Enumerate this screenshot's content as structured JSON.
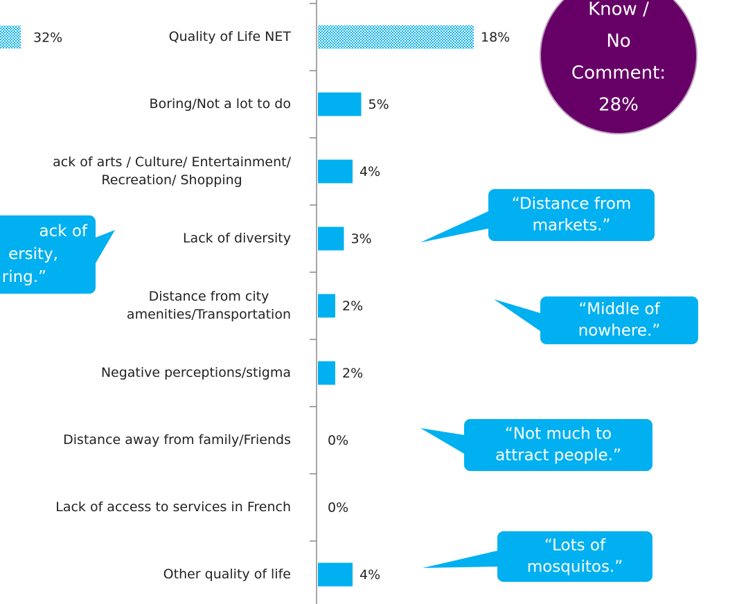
{
  "chart_data": [
    {
      "type": "bar",
      "orientation": "horizontal",
      "values": [
        32
      ],
      "value_labels": [
        "32%"
      ],
      "color": "#00b0f0",
      "bar_styles": [
        "dotted"
      ],
      "xlim": [
        0,
        40
      ]
    },
    {
      "type": "bar",
      "orientation": "horizontal",
      "categories": [
        "Quality of Life NET",
        "Boring/Not a lot to do",
        [
          "ack of arts / Culture/ Entertainment/",
          "Recreation/ Shopping"
        ],
        "Lack of diversity",
        [
          "Distance from city",
          "amenities/Transportation"
        ],
        "Negative perceptions/stigma",
        "Distance away from family/Friends",
        "Lack of access to services in French",
        "Other quality of life"
      ],
      "values": [
        18,
        5,
        4,
        3,
        2,
        2,
        0,
        0,
        4
      ],
      "value_labels": [
        "18%",
        "5%",
        "4%",
        "3%",
        "2%",
        "2%",
        "0%",
        "0%",
        "4%"
      ],
      "color": "#00b0f0",
      "bar_styles": [
        "dotted",
        "solid",
        "solid",
        "solid",
        "solid",
        "solid",
        "solid",
        "solid",
        "solid"
      ],
      "xlim": [
        0,
        40
      ]
    }
  ],
  "annotations": {
    "circle": {
      "lines": [
        "Know /",
        "No",
        "Comment:",
        "28%"
      ],
      "color": "#660066"
    },
    "callout_color": "#00b0f0",
    "callouts": [
      {
        "lines": [
          "ack of",
          "ersity,",
          "ring.”"
        ]
      },
      {
        "lines": [
          "“Distance from",
          "markets.”"
        ]
      },
      {
        "lines": [
          "“Middle of",
          "nowhere.”"
        ]
      },
      {
        "lines": [
          "“Not much to",
          "attract people.”"
        ]
      },
      {
        "lines": [
          "“Lots of",
          "mosquitos.”"
        ]
      }
    ]
  }
}
